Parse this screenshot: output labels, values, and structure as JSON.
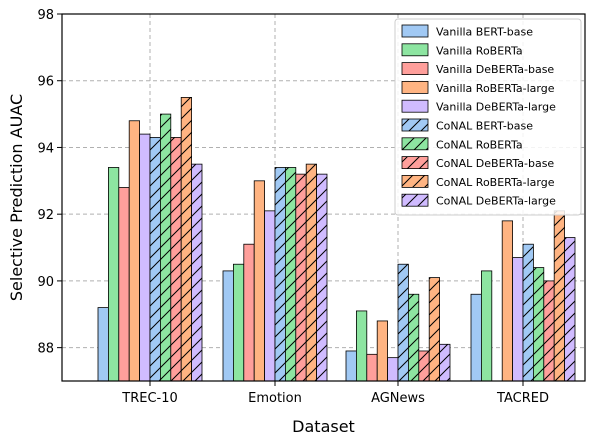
{
  "chart_data": {
    "type": "bar",
    "xlabel": "Dataset",
    "ylabel": "Selective Prediction AUAC",
    "ylim": [
      87,
      98
    ],
    "yticks": [
      88,
      90,
      92,
      94,
      96,
      98
    ],
    "grid": true,
    "legend_position": "top-right",
    "categories": [
      "TREC-10",
      "Emotion",
      "AGNews",
      "TACRED"
    ],
    "series": [
      {
        "name": "Vanilla BERT-base",
        "color": "#a1c9f4",
        "hatch": false,
        "values": [
          89.2,
          90.3,
          87.9,
          89.6
        ]
      },
      {
        "name": "Vanilla RoBERTa",
        "color": "#8de5a1",
        "hatch": false,
        "values": [
          93.4,
          90.5,
          89.1,
          90.3
        ]
      },
      {
        "name": "Vanilla DeBERTa-base",
        "color": "#ff9f9b",
        "hatch": false,
        "values": [
          92.8,
          91.1,
          87.8,
          87.0
        ]
      },
      {
        "name": "Vanilla RoBERTa-large",
        "color": "#ffb482",
        "hatch": false,
        "values": [
          94.8,
          93.0,
          88.8,
          91.8
        ]
      },
      {
        "name": "Vanilla DeBERTa-large",
        "color": "#d0bbff",
        "hatch": false,
        "values": [
          94.4,
          92.1,
          87.7,
          90.7
        ]
      },
      {
        "name": "CoNAL BERT-base",
        "color": "#a1c9f4",
        "hatch": true,
        "values": [
          94.3,
          93.4,
          90.5,
          91.1
        ]
      },
      {
        "name": "CoNAL RoBERTa",
        "color": "#8de5a1",
        "hatch": true,
        "values": [
          95.0,
          93.4,
          89.6,
          90.4
        ]
      },
      {
        "name": "CoNAL DeBERTa-base",
        "color": "#ff9f9b",
        "hatch": true,
        "values": [
          94.3,
          93.2,
          87.9,
          90.0
        ]
      },
      {
        "name": "CoNAL RoBERTa-large",
        "color": "#ffb482",
        "hatch": true,
        "values": [
          95.5,
          93.5,
          90.1,
          92.1
        ]
      },
      {
        "name": "CoNAL DeBERTa-large",
        "color": "#d0bbff",
        "hatch": true,
        "values": [
          93.5,
          93.2,
          88.1,
          91.3
        ]
      }
    ]
  }
}
